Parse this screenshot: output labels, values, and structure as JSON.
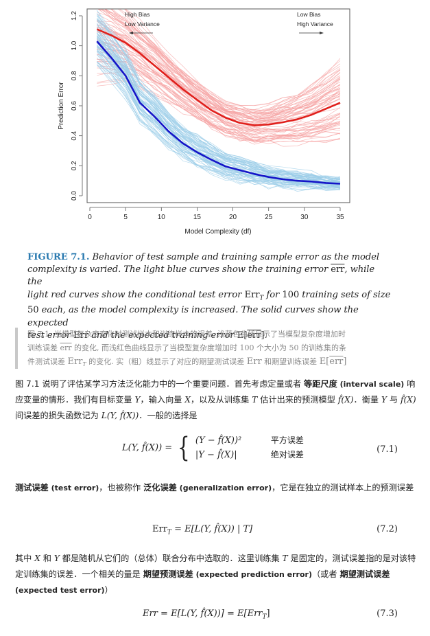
{
  "chart_data": {
    "type": "line",
    "title": "",
    "xlabel": "Model Complexity (df)",
    "ylabel": "Prediction Error",
    "xlim": [
      0,
      35
    ],
    "ylim": [
      0.0,
      1.2
    ],
    "x_ticks": [
      0,
      5,
      10,
      15,
      20,
      25,
      30,
      35
    ],
    "y_ticks": [
      "0.0",
      "0.2",
      "0.4",
      "0.6",
      "0.8",
      "1.0",
      "1.2"
    ],
    "grid": false,
    "annotations": [
      {
        "text": [
          "High Bias",
          "Low Variance"
        ],
        "arrow": "left",
        "position": "top-left"
      },
      {
        "text": [
          "Low Bias",
          "High Variance"
        ],
        "arrow": "right",
        "position": "top-right"
      }
    ],
    "x": [
      1,
      3,
      5,
      7,
      9,
      11,
      13,
      15,
      17,
      19,
      21,
      23,
      25,
      27,
      29,
      31,
      33,
      35
    ],
    "series": [
      {
        "name": "Expected test error Err",
        "color": "#e0201c",
        "style": "solid-thick",
        "values": [
          1.11,
          1.07,
          1.02,
          0.95,
          0.87,
          0.79,
          0.71,
          0.64,
          0.57,
          0.52,
          0.485,
          0.47,
          0.475,
          0.49,
          0.51,
          0.54,
          0.58,
          0.62
        ]
      },
      {
        "name": "Expected training error E[err]",
        "color": "#1515c8",
        "style": "solid-thick",
        "values": [
          1.03,
          0.92,
          0.8,
          0.62,
          0.53,
          0.43,
          0.35,
          0.29,
          0.24,
          0.195,
          0.17,
          0.145,
          0.125,
          0.11,
          0.1,
          0.095,
          0.085,
          0.08
        ]
      }
    ],
    "bands": [
      {
        "name": "Conditional test error Err_T (100 training sets)",
        "color": "#f5a3a3",
        "count": 100,
        "spread": 0.2
      },
      {
        "name": "Training error err (100 training sets)",
        "color": "#9ccde8",
        "count": 100,
        "spread": 0.16
      }
    ]
  },
  "figure_caption_en": {
    "label": "FIGURE 7.1.",
    "line1": "Behavior of test sample and training sample error as the model",
    "line2a": "complexity is varied. The light blue curves show the training error ",
    "line2_err": "err",
    "line2b": ", while the",
    "line3a": "light red curves show the conditional test error ",
    "line3_err": "Err",
    "line3_sub": "T",
    "line3b": " for ",
    "line3_num": "100",
    "line3c": " training sets of size",
    "line4_num": "50",
    "line4a": " each, as the model complexity is increased. The solid curves show the expected",
    "line5a": "test error ",
    "line5_err": "Err",
    "line5b": " and the expected training error ",
    "line5_e": "E[",
    "line5_err2": "err",
    "line5_end": "]."
  },
  "figure_caption_cn": {
    "line1": "图 7.1. 当模型复杂度变化时测试样本和训练样本的误差. 浅蓝色曲线显示了当模型复杂度增加时",
    "line2a": "训练误差 ",
    "line2_err": "err",
    "line2b": " 的变化, 而浅红色曲线显示了当模型复杂度增加时 100 个大小为 50 的训练集的条",
    "line3a": "件测试误差 ",
    "line3_err": "Err",
    "line3_sub": "T",
    "line3b": " 的变化. 实（粗）线显示了对应的期望测试误差 ",
    "line3_err2": "Err",
    "line3c": " 和期望训练误差 ",
    "line3_e": "E[",
    "line3_err3": "err",
    "line3_end": "]"
  },
  "para1": {
    "t1": "图 7.1 说明了评估某学习方法泛化能力中的一个重要问题．首先考虑定量或者 ",
    "b1": "等距尺度",
    "e1": " (interval scale)",
    "t2": " 响应变量的情形．我们有目标变量 ",
    "Y": "Y",
    "t3": "，输入向量 ",
    "X": "X",
    "t4": "，以及从训练集 ",
    "T": "T",
    "t5": " 估计出来的预测模型 ",
    "fhat": "f̂(X)",
    "t6": "．衡量 ",
    "t7": " 与 ",
    "t8": " 间误差的损失函数记为 ",
    "L": "L(Y, f̂(X))",
    "t9": "．一般的选择是"
  },
  "eq1": {
    "lhs": "L(Y, f̂(X)) =",
    "case1_expr": "(Y − f̂(X))²",
    "case1_label": "平方误差",
    "case2_expr": "|Y − f̂(X)|",
    "case2_label": "绝对误差",
    "number": "(7.1)"
  },
  "para2": {
    "b1": "测试误差",
    "e1": " (test error)",
    "t1": "，也被称作 ",
    "b2": "泛化误差",
    "e2": " (generalization error)",
    "t2": "，它是在独立的测试样本上的预测误差"
  },
  "eq2": {
    "lhs": "Err",
    "sub": "T",
    "rhs": " = E[L(Y, f̂(X)) | T]",
    "number": "(7.2)"
  },
  "para3": {
    "t1": "其中 ",
    "X": "X",
    "t2": " 和 ",
    "Y": "Y",
    "t3": " 都是随机从它们的（总体）联合分布中选取的．这里训练集 ",
    "T": "T",
    "t4": " 是固定的，测试误差指的是对该特定训练集的误差．一个相关的量是 ",
    "b1": "期望预测误差",
    "e1": " (expected prediction error)",
    "t5": "（或者 ",
    "b2": "期望测试误差",
    "e2": " (expected test error)",
    "t6": "）"
  },
  "eq3": {
    "lhs": "Err = E[L(Y, f̂(X))] = E[Err",
    "sub": "T",
    "end": "]",
    "number": "(7.3)"
  }
}
